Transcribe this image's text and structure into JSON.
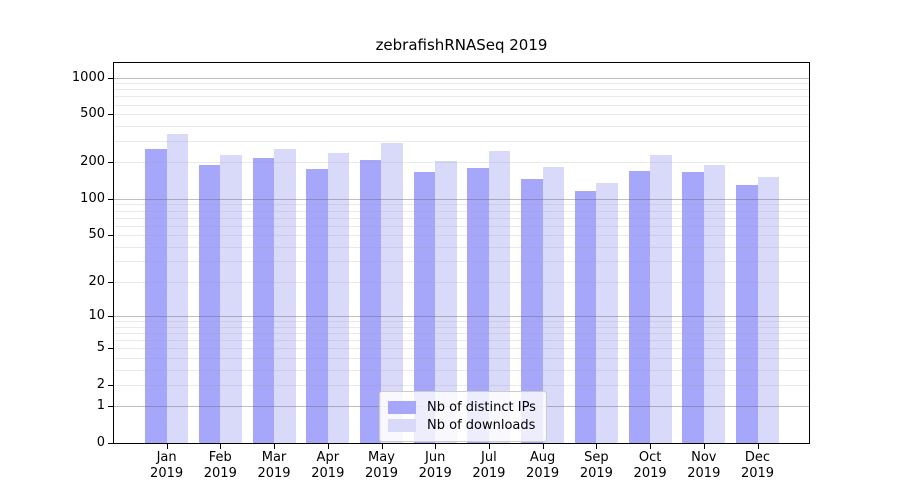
{
  "chart_data": {
    "type": "bar",
    "title": "zebrafishRNASeq 2019",
    "categories": [
      "Jan",
      "Feb",
      "Mar",
      "Apr",
      "May",
      "Jun",
      "Jul",
      "Aug",
      "Sep",
      "Oct",
      "Nov",
      "Dec"
    ],
    "year_label": "2019",
    "series": [
      {
        "name": "Nb of distinct IPs",
        "color": "#a6a6fa",
        "values": [
          260,
          192,
          218,
          177,
          210,
          168,
          180,
          146,
          117,
          170,
          167,
          129
        ]
      },
      {
        "name": "Nb of downloads",
        "color": "#d9d9fa",
        "values": [
          340,
          232,
          258,
          238,
          288,
          206,
          248,
          183,
          134,
          230,
          190,
          152
        ]
      }
    ],
    "yscale": "log1p",
    "y_ticks": [
      0,
      1,
      2,
      5,
      10,
      20,
      50,
      100,
      200,
      500,
      1000
    ],
    "ylim": [
      0,
      1300
    ],
    "grid": "horizontal-major-minor",
    "legend_position": "lower center"
  }
}
